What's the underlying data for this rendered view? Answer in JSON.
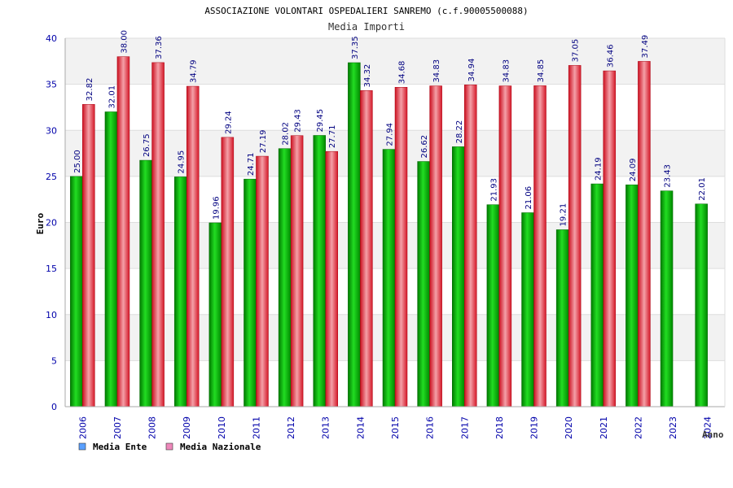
{
  "chart_data": {
    "type": "bar",
    "title": "ASSOCIAZIONE VOLONTARI OSPEDALIERI SANREMO (c.f.90005500088)",
    "subtitle": "Media Importi",
    "ylabel": "Euro",
    "xlabel": "Anno",
    "ylim": [
      0,
      40
    ],
    "yticks": [
      0,
      5,
      10,
      15,
      20,
      25,
      30,
      35,
      40
    ],
    "grid": true,
    "legend_position": "bottom-left",
    "categories": [
      "2006",
      "2007",
      "2008",
      "2009",
      "2010",
      "2011",
      "2012",
      "2013",
      "2014",
      "2015",
      "2016",
      "2017",
      "2018",
      "2019",
      "2020",
      "2021",
      "2022",
      "2023",
      "2024"
    ],
    "series": [
      {
        "name": "Media Ente",
        "color": "#00aa00",
        "legend_color": "#5aa0ff",
        "values": [
          25.0,
          32.01,
          26.75,
          24.95,
          19.96,
          24.71,
          28.02,
          29.45,
          37.35,
          27.94,
          26.62,
          28.22,
          21.93,
          21.06,
          19.21,
          24.19,
          24.09,
          23.43,
          22.01
        ],
        "labels": [
          "25.00",
          "32.01",
          "26.75",
          "24.95",
          "19.96",
          "24.71",
          "28.02",
          "29.45",
          "37.35",
          "27.94",
          "26.62",
          "28.22",
          "21.93",
          "21.06",
          "19.21",
          "24.19",
          "24.09",
          "23.43",
          "22.01"
        ]
      },
      {
        "name": "Media Nazionale",
        "color": "#e8323c",
        "legend_color": "#ee88bb",
        "values": [
          32.82,
          38.0,
          37.36,
          34.79,
          29.24,
          27.19,
          29.43,
          27.71,
          34.32,
          34.68,
          34.83,
          34.94,
          34.83,
          34.85,
          37.05,
          36.46,
          37.49,
          null,
          null
        ],
        "labels": [
          "32.82",
          "38.00",
          "37.36",
          "34.79",
          "29.24",
          "27.19",
          "29.43",
          "27.71",
          "34.32",
          "34.68",
          "34.83",
          "34.94",
          "34.83",
          "34.85",
          "37.05",
          "36.46",
          "37.49",
          null,
          null
        ]
      }
    ]
  }
}
